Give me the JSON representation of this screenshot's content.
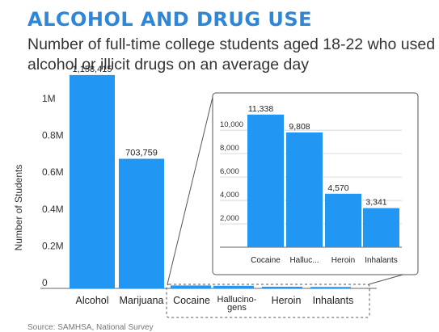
{
  "header": {
    "title": "ALCOHOL AND DRUG USE",
    "subtitle": "Number of full-time college students aged 18-22 who used alcohol or illicit drugs on an average day"
  },
  "source_text": "Source: SAMHSA, National Survey",
  "colors": {
    "accent": "#2f86d6",
    "bar": "#2196f3",
    "inset_border": "#555555"
  },
  "chart_data": [
    {
      "type": "bar",
      "categories": [
        "Alcohol",
        "Marijuana",
        "Cocaine",
        "Hallucino-gens",
        "Heroin",
        "Inhalants"
      ],
      "values": [
        1158415,
        703759,
        11338,
        9808,
        4570,
        3341
      ],
      "value_labels": [
        "1,158,415",
        "703,759",
        "",
        "",
        "",
        ""
      ],
      "ylabel": "Number of Students",
      "yticks": [
        "0",
        "0.2M",
        "0.4M",
        "0.6M",
        "0.8M",
        "1M"
      ],
      "ytick_values": [
        0,
        200000,
        400000,
        600000,
        800000,
        1000000
      ],
      "ylim": [
        0,
        1250000
      ],
      "grid": false
    },
    {
      "type": "bar",
      "categories": [
        "Cocaine",
        "Halluc...",
        "Heroin",
        "Inhalants"
      ],
      "values": [
        11338,
        9808,
        4570,
        3341
      ],
      "value_labels": [
        "11,338",
        "9,808",
        "4,570",
        "3,341"
      ],
      "yticks": [
        "2,000",
        "4,000",
        "6,000",
        "8,000",
        "10,000"
      ],
      "ytick_values": [
        2000,
        4000,
        6000,
        8000,
        10000
      ],
      "ylim": [
        0,
        12500
      ],
      "grid": true
    }
  ]
}
